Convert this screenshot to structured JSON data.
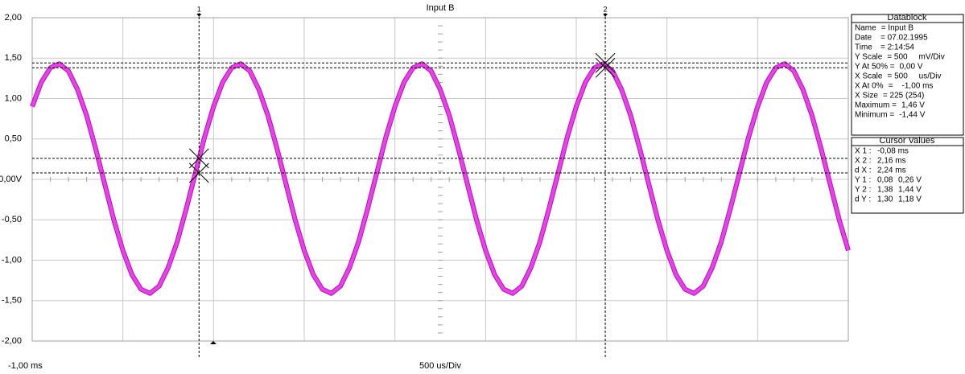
{
  "chart_data": {
    "type": "line",
    "title": "Input B",
    "color": "#f03cf0",
    "xlim": [
      -1,
      3.5
    ],
    "ylim": [
      -2,
      2
    ],
    "xticks": [
      -1,
      -0.5,
      0,
      0.5,
      1,
      1.5,
      2,
      2.5,
      3,
      3.5
    ],
    "yticks": [
      {
        "value": 2,
        "label": "2,00"
      },
      {
        "value": 1.5,
        "label": "1,50"
      },
      {
        "value": 1,
        "label": "1,00"
      },
      {
        "value": 0.5,
        "label": "0,50"
      },
      {
        "value": 0,
        "label": "0,00V"
      },
      {
        "value": -0.5,
        "label": "-0,50"
      },
      {
        "value": -1,
        "label": "-1,00"
      },
      {
        "value": -1.5,
        "label": "-1,50"
      },
      {
        "value": -2,
        "label": "-2,00"
      }
    ],
    "x_start_label": "-1,00 ms",
    "x_scale_label": "500 us/Div",
    "x": [
      -1,
      -0.95,
      -0.9,
      -0.85,
      -0.8,
      -0.75,
      -0.7,
      -0.65,
      -0.6,
      -0.55,
      -0.5,
      -0.45,
      -0.4,
      -0.35,
      -0.3,
      -0.25,
      -0.2,
      -0.15,
      -0.1,
      -0.05,
      0,
      0.05,
      0.1,
      0.15,
      0.2,
      0.25,
      0.3,
      0.35,
      0.4,
      0.45,
      0.5,
      0.55,
      0.6,
      0.65,
      0.7,
      0.75,
      0.8,
      0.85,
      0.9,
      0.95,
      1,
      1.05,
      1.1,
      1.15,
      1.2,
      1.25,
      1.3,
      1.35,
      1.4,
      1.45,
      1.5,
      1.55,
      1.6,
      1.65,
      1.7,
      1.75,
      1.8,
      1.85,
      1.9,
      1.95,
      2,
      2.05,
      2.1,
      2.15,
      2.2,
      2.25,
      2.3,
      2.35,
      2.4,
      2.45,
      2.5,
      2.55,
      2.6,
      2.65,
      2.7,
      2.75,
      2.8,
      2.85,
      2.9,
      2.95,
      3,
      3.05,
      3.1,
      3.15,
      3.2,
      3.25,
      3.3,
      3.35,
      3.4,
      3.45,
      3.5
    ],
    "values": [
      0.9,
      1.2,
      1.38,
      1.43,
      1.34,
      1.11,
      0.79,
      0.38,
      -0.06,
      -0.5,
      -0.88,
      -1.18,
      -1.36,
      -1.41,
      -1.32,
      -1.09,
      -0.77,
      -0.36,
      0.08,
      0.52,
      0.9,
      1.2,
      1.38,
      1.43,
      1.34,
      1.11,
      0.79,
      0.38,
      -0.06,
      -0.5,
      -0.88,
      -1.18,
      -1.36,
      -1.41,
      -1.32,
      -1.09,
      -0.77,
      -0.36,
      0.08,
      0.52,
      0.9,
      1.2,
      1.38,
      1.43,
      1.34,
      1.11,
      0.79,
      0.38,
      -0.06,
      -0.5,
      -0.88,
      -1.18,
      -1.36,
      -1.41,
      -1.32,
      -1.09,
      -0.77,
      -0.36,
      0.08,
      0.52,
      0.9,
      1.2,
      1.38,
      1.43,
      1.34,
      1.11,
      0.79,
      0.38,
      -0.06,
      -0.5,
      -0.88,
      -1.18,
      -1.36,
      -1.41,
      -1.32,
      -1.09,
      -0.77,
      -0.36,
      0.08,
      0.52,
      0.9,
      1.2,
      1.38,
      1.43,
      1.34,
      1.11,
      0.79,
      0.38,
      -0.06,
      -0.5,
      -0.88
    ],
    "cursor_labels": [
      "1",
      "2"
    ],
    "datablock": {
      "title": "Datablock",
      "rows": [
        [
          "Name",
          "= Input B"
        ],
        [
          "Date",
          "= 07.02.1995"
        ],
        [
          "Time",
          "= 2:14:54"
        ],
        [
          "Y Scale",
          "= 500     mV/Div"
        ],
        [
          "Y At 50% =",
          "0,00 V"
        ],
        [
          "X Scale",
          "= 500     us/Div"
        ],
        [
          "X At 0%",
          "=    -1,00 ms"
        ],
        [
          "X Size",
          "= 225 (254)"
        ],
        [
          "Maximum =",
          "1,46 V"
        ],
        [
          "Minimum =",
          "-1,44 V"
        ]
      ]
    },
    "cursor_values": {
      "title": "Cursor Values",
      "rows": [
        {
          "name": "X 1 :",
          "values": [
            {
              "value": -0.08,
              "label": "-0,08 ms"
            }
          ]
        },
        {
          "name": "X 2 :",
          "values": [
            {
              "value": 2.16,
              "label": "2,16 ms"
            }
          ]
        },
        {
          "name": "d X :",
          "values": [
            {
              "value": 2.24,
              "label": "2,24 ms"
            }
          ]
        },
        {
          "name": "Y 1 :",
          "values": [
            {
              "value": 0.08,
              "label": "0,08"
            },
            {
              "value": 0.26,
              "label": "0,26 V"
            }
          ]
        },
        {
          "name": "Y 2 :",
          "values": [
            {
              "value": 1.38,
              "label": "1,38"
            },
            {
              "value": 1.44,
              "label": "1,44 V"
            }
          ]
        },
        {
          "name": "d Y :",
          "values": [
            {
              "value": 1.3,
              "label": "1,30"
            },
            {
              "value": 1.18,
              "label": "1,18 V"
            }
          ]
        }
      ]
    }
  }
}
